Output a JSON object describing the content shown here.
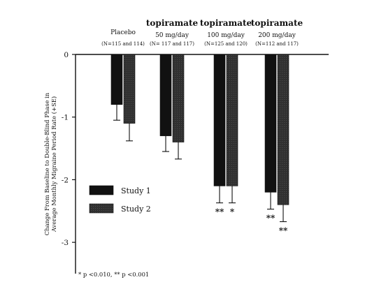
{
  "chart_data": {
    "type": "bar",
    "categories": [
      "Placebo",
      "topiramate 50 mg/day",
      "topiramate 100 mg/day",
      "topiramate 200 mg/day"
    ],
    "group_labels": [
      {
        "title": "Placebo",
        "subtitle": "",
        "n": "(N=115 and 114)"
      },
      {
        "title": "topiramate",
        "subtitle": "50 mg/day",
        "n": "(N= 117 and 117)"
      },
      {
        "title": "topiramate",
        "subtitle": "100 mg/day",
        "n": "(N=125 and 120)"
      },
      {
        "title": "topiramate",
        "subtitle": "200 mg/day",
        "n": "(N=112 and 117)"
      }
    ],
    "series": [
      {
        "name": "Study 1",
        "values": [
          -0.8,
          -1.3,
          -2.1,
          -2.2
        ],
        "errors": [
          0.25,
          0.25,
          0.27,
          0.27
        ],
        "color": "#111111"
      },
      {
        "name": "Study 2",
        "values": [
          -1.1,
          -1.4,
          -2.1,
          -2.4
        ],
        "errors": [
          0.28,
          0.27,
          0.27,
          0.27
        ],
        "color": "#303030"
      }
    ],
    "annotations": [
      {
        "category_index": 2,
        "series_index": 0,
        "text": "**"
      },
      {
        "category_index": 2,
        "series_index": 1,
        "text": "*"
      },
      {
        "category_index": 3,
        "series_index": 0,
        "text": "**"
      },
      {
        "category_index": 3,
        "series_index": 1,
        "text": "**"
      }
    ],
    "yticks": [
      0,
      -1,
      -2,
      -3
    ],
    "ytick_labels": [
      "0",
      "-1",
      "-2",
      "-3"
    ],
    "ylim": [
      -3.5,
      0
    ],
    "ylabel_lines": [
      "Change From Baseline to Double-Blind Phase in",
      "Average Monthly Migraine Period Rate (+SE)"
    ],
    "footnote": "* p <0.010, ** p <0.001",
    "legend_position": "lower-left",
    "grid": false
  }
}
